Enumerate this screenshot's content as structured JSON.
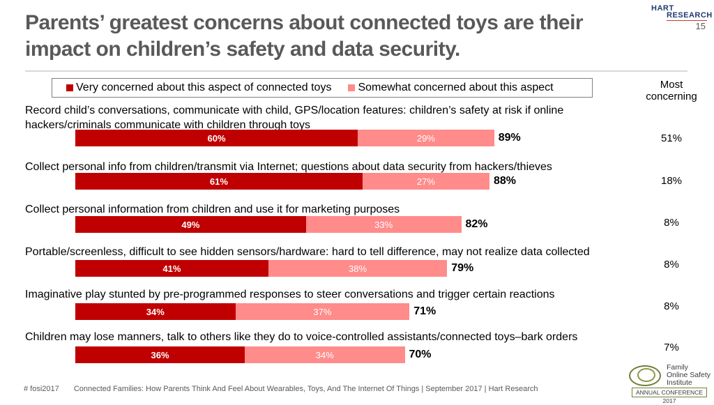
{
  "title": "Parents’ greatest concerns about connected toys are their impact on children’s safety and data security.",
  "page_number": "15",
  "logo": {
    "line1": "HART",
    "line2": "RESEARCH"
  },
  "colors": {
    "very": "#c00000",
    "somewhat": "#ff8b8b",
    "text": "#000000",
    "title": "#595959"
  },
  "legend": {
    "very_label": "Very concerned about this aspect of connected toys",
    "somewhat_label": "Somewhat concerned about this aspect"
  },
  "most_header": "Most concerning",
  "chart_data": {
    "type": "bar",
    "orientation": "horizontal",
    "stacked": true,
    "title": "Parents’ greatest concerns about connected toys are their impact on children’s safety and data security.",
    "unit": "%",
    "categories": [
      "Record child’s conversations, communicate with child, GPS/location features: children’s safety at risk if online hackers/criminals communicate with children through toys",
      "Collect personal info from children/transmit via Internet; questions about data security from hackers/thieves",
      "Collect personal information from children and use it for marketing purposes",
      "Portable/screenless, difficult to see hidden sensors/hardware: hard to tell difference, may not realize data collected",
      "Imaginative play stunted by pre-programmed responses to steer conversations and trigger certain reactions",
      "Children may lose manners, talk to others like they do to voice-controlled assistants/connected toys–bark orders"
    ],
    "series": [
      {
        "name": "Very concerned about this aspect of connected toys",
        "values": [
          60,
          61,
          49,
          41,
          34,
          36
        ],
        "labels": [
          "60%",
          "61%",
          "49%",
          "41%",
          "34%",
          "36%"
        ]
      },
      {
        "name": "Somewhat concerned about this aspect",
        "values": [
          29,
          27,
          33,
          38,
          37,
          34
        ],
        "labels": [
          "29%",
          "27%",
          "33%",
          "38%",
          "37%",
          "34%"
        ]
      }
    ],
    "totals": [
      89,
      88,
      82,
      79,
      71,
      70
    ],
    "total_labels": [
      "89%",
      "88%",
      "82%",
      "79%",
      "71%",
      "70%"
    ],
    "most_concerning": [
      "51%",
      "18%",
      "8%",
      "8%",
      "8%",
      "7%"
    ],
    "xlim": [
      0,
      100
    ]
  },
  "footer": {
    "hashtag": "# fosi2017",
    "text": "Connected Families: How Parents Think And Feel About Wearables, Toys, And The Internet Of Things | September 2017 | Hart Research"
  },
  "fosi": {
    "name": "Family Online Safety Institute",
    "conference": "ANNUAL CONFERENCE 2017"
  }
}
